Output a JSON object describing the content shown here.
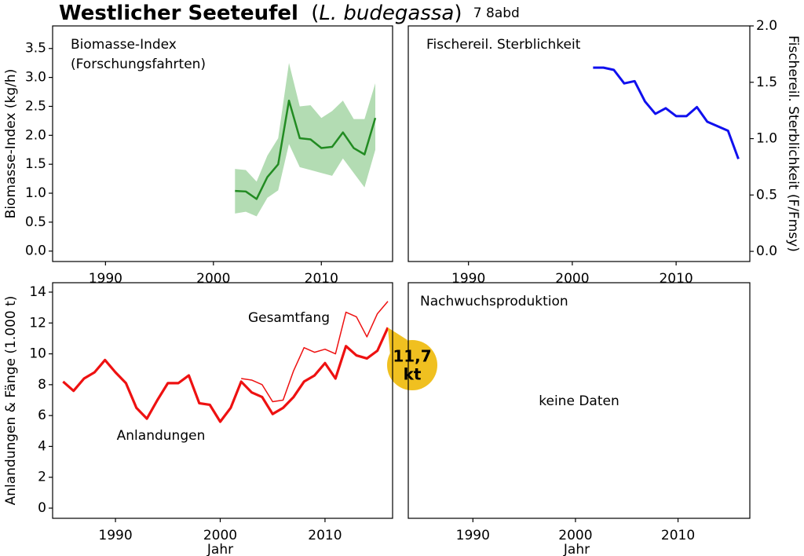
{
  "title": {
    "main": "Westlicher Seeteufel",
    "brackets": [
      "(",
      ")"
    ],
    "species": "L. budegassa",
    "area": "7 8abd"
  },
  "chart_data": [
    {
      "type": "line",
      "panel_label": [
        "Biomasse-Index",
        "(Forschungsfahrten)"
      ],
      "y_label": "Biomasse-Index (kg/h)",
      "yaxis_side": "left",
      "xlim": [
        1985.1,
        2016.6
      ],
      "xticks": [
        1990,
        2000,
        2010
      ],
      "ylim": [
        -0.18,
        3.89
      ],
      "yticks": [
        {
          "value": 0,
          "label": "0.0"
        },
        0.5,
        {
          "value": 1,
          "label": "1.0"
        },
        1.5,
        {
          "value": 2,
          "label": "2.0"
        },
        2.5,
        {
          "value": 3,
          "label": "3.0"
        },
        3.5
      ],
      "series": [
        {
          "color": "#228b22",
          "band_color": "#b3dcb3",
          "width": 2.5,
          "x": [
            2002,
            2003,
            2004,
            2005,
            2006,
            2007,
            2008,
            2009,
            2010,
            2011,
            2012,
            2013,
            2014,
            2015
          ],
          "values": [
            1.04,
            1.03,
            0.9,
            1.28,
            1.5,
            2.6,
            1.95,
            1.93,
            1.78,
            1.8,
            2.05,
            1.78,
            1.67,
            2.3
          ],
          "lower": [
            0.65,
            0.68,
            0.6,
            0.92,
            1.05,
            1.85,
            1.45,
            1.4,
            1.35,
            1.3,
            1.6,
            1.35,
            1.1,
            1.75
          ],
          "upper": [
            1.42,
            1.4,
            1.2,
            1.65,
            1.95,
            3.25,
            2.5,
            2.52,
            2.3,
            2.42,
            2.6,
            2.28,
            2.28,
            2.9
          ]
        }
      ]
    },
    {
      "type": "line",
      "panel_label": [
        "Fischereil. Sterblichkeit"
      ],
      "y_label": "Fischereil. Sterblichkeit (F/Fmsy)",
      "yaxis_side": "right",
      "xlim": [
        1984.2,
        2017.1
      ],
      "xticks": [
        1990,
        2000,
        2010
      ],
      "ylim": [
        -0.09,
        2.0
      ],
      "yticks": [
        {
          "value": 0,
          "label": "0.0"
        },
        0.5,
        {
          "value": 1,
          "label": "1.0"
        },
        1.5,
        {
          "value": 2,
          "label": "2.0"
        }
      ],
      "series": [
        {
          "color": "#1010ee",
          "width": 3,
          "x": [
            2002,
            2003,
            2004,
            2005,
            2006,
            2007,
            2008,
            2009,
            2010,
            2011,
            2012,
            2013,
            2014,
            2015,
            2016
          ],
          "values": [
            1.63,
            1.63,
            1.61,
            1.49,
            1.51,
            1.33,
            1.22,
            1.27,
            1.2,
            1.2,
            1.28,
            1.15,
            1.11,
            1.07,
            0.82
          ]
        }
      ]
    },
    {
      "type": "line",
      "y_label": "Anlandungen & Fänge (1.000 t)",
      "x_label": "Jahr",
      "yaxis_side": "left",
      "xlim": [
        1984.0,
        2016.45
      ],
      "xticks": [
        1990,
        2000,
        2010
      ],
      "ylim": [
        -0.66,
        14.61
      ],
      "yticks": [
        0,
        2,
        4,
        6,
        8,
        10,
        12,
        14
      ],
      "series": [
        {
          "name": "Anlandungen",
          "color": "#ee1111",
          "width": 3.2,
          "x": [
            1985,
            1986,
            1987,
            1988,
            1989,
            1990,
            1991,
            1992,
            1993,
            1994,
            1995,
            1996,
            1997,
            1998,
            1999,
            2000,
            2001,
            2002,
            2003,
            2004,
            2005,
            2006,
            2007,
            2008,
            2009,
            2010,
            2011,
            2012,
            2013,
            2014,
            2015,
            2016
          ],
          "values": [
            8.2,
            7.6,
            8.4,
            8.8,
            9.6,
            8.8,
            8.1,
            6.5,
            5.8,
            7.0,
            8.1,
            8.1,
            8.6,
            6.8,
            6.7,
            5.6,
            6.5,
            8.2,
            7.5,
            7.2,
            6.1,
            6.5,
            7.2,
            8.2,
            8.6,
            9.4,
            8.4,
            10.5,
            9.9,
            9.7,
            10.2,
            11.7
          ],
          "callout": [
            "11,7",
            "kt"
          ]
        },
        {
          "name": "Gesamtfang",
          "color": "#ee1111",
          "width": 1.5,
          "x": [
            2002,
            2003,
            2004,
            2005,
            2006,
            2007,
            2008,
            2009,
            2010,
            2011,
            2012,
            2013,
            2014,
            2015,
            2016
          ],
          "values": [
            8.4,
            8.3,
            8.0,
            6.9,
            7.0,
            8.9,
            10.4,
            10.1,
            10.3,
            10.0,
            12.7,
            12.4,
            11.1,
            12.6,
            13.4
          ]
        }
      ]
    },
    {
      "type": "empty",
      "panel_label": [
        "Nachwuchsproduktion"
      ],
      "note": "keine Daten",
      "x_label": "Jahr",
      "xlim": [
        1983.7,
        2017.0
      ],
      "xticks": [
        1990,
        2000,
        2010
      ]
    }
  ]
}
